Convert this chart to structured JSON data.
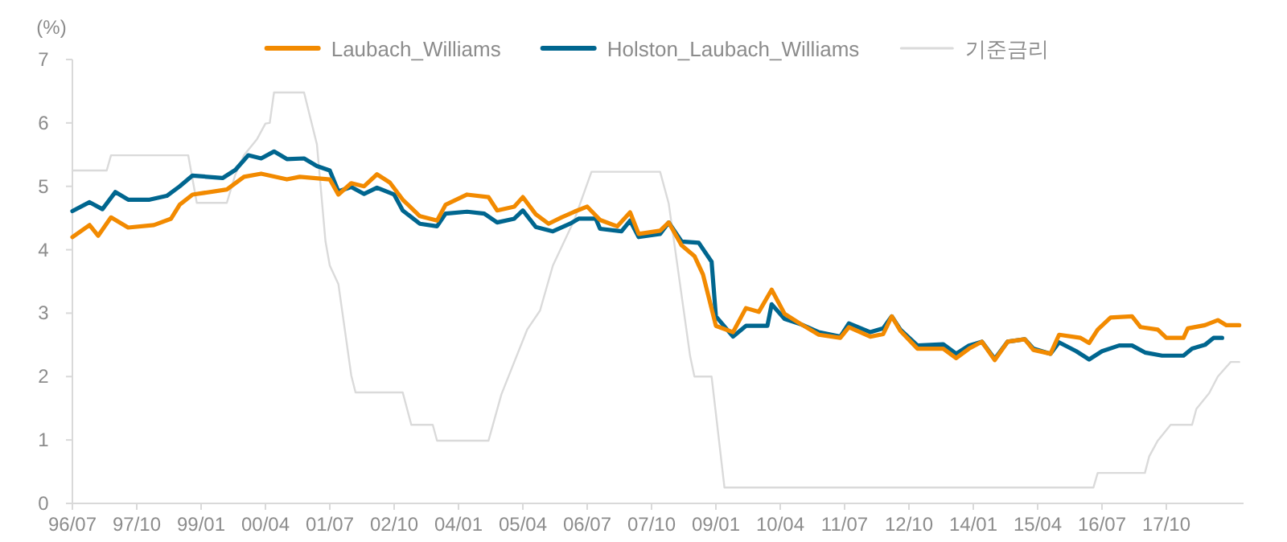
{
  "chart_data": {
    "type": "line",
    "ylabel": "(%)",
    "legend": "top",
    "grid": false,
    "xlim": [
      "1996-07",
      "2019-04"
    ],
    "ylim": [
      0,
      7
    ],
    "yticks": [
      0,
      1,
      2,
      3,
      4,
      5,
      6,
      7
    ],
    "xticks": [
      {
        "value": "1996-07",
        "label": "96/07"
      },
      {
        "value": "1997-10",
        "label": "97/10"
      },
      {
        "value": "1999-01",
        "label": "99/01"
      },
      {
        "value": "2000-04",
        "label": "00/04"
      },
      {
        "value": "2001-07",
        "label": "01/07"
      },
      {
        "value": "2002-10",
        "label": "02/10"
      },
      {
        "value": "2004-01",
        "label": "04/01"
      },
      {
        "value": "2005-04",
        "label": "05/04"
      },
      {
        "value": "2006-07",
        "label": "06/07"
      },
      {
        "value": "2007-10",
        "label": "07/10"
      },
      {
        "value": "2009-01",
        "label": "09/01"
      },
      {
        "value": "2010-04",
        "label": "10/04"
      },
      {
        "value": "2011-07",
        "label": "11/07"
      },
      {
        "value": "2012-10",
        "label": "12/10"
      },
      {
        "value": "2014-01",
        "label": "14/01"
      },
      {
        "value": "2015-04",
        "label": "15/04"
      },
      {
        "value": "2016-07",
        "label": "16/07"
      },
      {
        "value": "2017-10",
        "label": "17/10"
      }
    ],
    "series": [
      {
        "name": "Laubach_Williams",
        "color": "#f28a00",
        "x": [
          "1996-07",
          "1996-11",
          "1997-01",
          "1997-04",
          "1997-08",
          "1998-02",
          "1998-06",
          "1998-08",
          "1998-11",
          "1999-07",
          "1999-11",
          "2000-03",
          "2000-09",
          "2000-12",
          "2001-07",
          "2001-09",
          "2001-12",
          "2002-03",
          "2002-06",
          "2002-09",
          "2002-12",
          "2003-04",
          "2003-08",
          "2003-10",
          "2004-03",
          "2004-08",
          "2004-10",
          "2005-02",
          "2005-04",
          "2005-07",
          "2005-10",
          "2006-01",
          "2006-04",
          "2006-07",
          "2006-10",
          "2007-02",
          "2007-05",
          "2007-07",
          "2007-12",
          "2008-02",
          "2008-05",
          "2008-08",
          "2008-10",
          "2009-01",
          "2009-05",
          "2009-08",
          "2009-11",
          "2010-02",
          "2010-05",
          "2010-09",
          "2011-01",
          "2011-06",
          "2011-08",
          "2012-01",
          "2012-04",
          "2012-06",
          "2012-08",
          "2012-12",
          "2013-06",
          "2013-09",
          "2013-12",
          "2014-03",
          "2014-06",
          "2014-09",
          "2015-01",
          "2015-03",
          "2015-07",
          "2015-09",
          "2016-02",
          "2016-04",
          "2016-06",
          "2016-09",
          "2017-02",
          "2017-04",
          "2017-08",
          "2017-10",
          "2018-02",
          "2018-03",
          "2018-07",
          "2018-10",
          "2018-12",
          "2019-03"
        ],
        "values": [
          4.2,
          4.39,
          4.22,
          4.51,
          4.35,
          4.39,
          4.49,
          4.71,
          4.87,
          4.95,
          5.15,
          5.2,
          5.11,
          5.15,
          5.11,
          4.87,
          5.05,
          5.0,
          5.19,
          5.06,
          4.79,
          4.53,
          4.46,
          4.71,
          4.87,
          4.83,
          4.62,
          4.68,
          4.83,
          4.56,
          4.41,
          4.51,
          4.6,
          4.68,
          4.47,
          4.37,
          4.59,
          4.25,
          4.3,
          4.43,
          4.07,
          3.9,
          3.61,
          2.8,
          2.7,
          3.08,
          3.02,
          3.37,
          2.99,
          2.82,
          2.66,
          2.61,
          2.78,
          2.63,
          2.67,
          2.95,
          2.72,
          2.44,
          2.44,
          2.29,
          2.44,
          2.55,
          2.26,
          2.55,
          2.59,
          2.42,
          2.36,
          2.66,
          2.61,
          2.53,
          2.74,
          2.93,
          2.95,
          2.78,
          2.74,
          2.61,
          2.61,
          2.76,
          2.81,
          2.89,
          2.81,
          2.81
        ]
      },
      {
        "name": "Holston_Laubach_Williams",
        "color": "#00668f",
        "x": [
          "1996-07",
          "1996-11",
          "1997-02",
          "1997-05",
          "1997-08",
          "1998-01",
          "1998-05",
          "1998-08",
          "1998-11",
          "1999-06",
          "1999-09",
          "1999-12",
          "2000-03",
          "2000-06",
          "2000-09",
          "2001-01",
          "2001-04",
          "2001-07",
          "2001-09",
          "2001-12",
          "2002-03",
          "2002-06",
          "2002-10",
          "2002-12",
          "2003-04",
          "2003-08",
          "2003-10",
          "2004-03",
          "2004-07",
          "2004-10",
          "2005-02",
          "2005-04",
          "2005-07",
          "2005-11",
          "2006-03",
          "2006-05",
          "2006-09",
          "2006-10",
          "2007-03",
          "2007-05",
          "2007-07",
          "2007-12",
          "2008-02",
          "2008-05",
          "2008-09",
          "2008-12",
          "2009-01",
          "2009-05",
          "2009-08",
          "2010-01",
          "2010-02",
          "2010-05",
          "2010-09",
          "2011-01",
          "2011-06",
          "2011-08",
          "2012-01",
          "2012-04",
          "2012-06",
          "2012-08",
          "2012-12",
          "2013-06",
          "2013-09",
          "2013-12",
          "2014-03",
          "2014-06",
          "2014-09",
          "2015-01",
          "2015-03",
          "2015-07",
          "2015-09",
          "2016-01",
          "2016-04",
          "2016-07",
          "2016-11",
          "2017-02",
          "2017-05",
          "2017-09",
          "2018-02",
          "2018-04",
          "2018-07",
          "2018-09",
          "2018-11"
        ],
        "values": [
          4.61,
          4.75,
          4.64,
          4.91,
          4.79,
          4.79,
          4.85,
          5.0,
          5.17,
          5.13,
          5.26,
          5.49,
          5.44,
          5.55,
          5.43,
          5.44,
          5.32,
          5.25,
          4.92,
          4.99,
          4.88,
          4.98,
          4.87,
          4.62,
          4.41,
          4.37,
          4.57,
          4.6,
          4.57,
          4.43,
          4.49,
          4.62,
          4.36,
          4.29,
          4.41,
          4.49,
          4.49,
          4.33,
          4.29,
          4.46,
          4.2,
          4.25,
          4.43,
          4.13,
          4.11,
          3.81,
          2.95,
          2.63,
          2.8,
          2.8,
          3.14,
          2.91,
          2.82,
          2.7,
          2.63,
          2.84,
          2.7,
          2.76,
          2.95,
          2.74,
          2.49,
          2.51,
          2.36,
          2.49,
          2.55,
          2.28,
          2.55,
          2.59,
          2.44,
          2.36,
          2.54,
          2.4,
          2.27,
          2.4,
          2.49,
          2.49,
          2.38,
          2.33,
          2.33,
          2.44,
          2.5,
          2.61,
          2.61
        ]
      },
      {
        "name": "기준금리",
        "color": "#dadada",
        "x": [
          "1996-07",
          "1997-03",
          "1997-04",
          "1998-10",
          "1998-12",
          "1999-07",
          "1999-09",
          "1999-11",
          "2000-02",
          "2000-04",
          "2000-05",
          "2000-06",
          "2001-01",
          "2001-04",
          "2001-06",
          "2001-07",
          "2001-09",
          "2001-12",
          "2002-01",
          "2002-12",
          "2003-02",
          "2003-07",
          "2003-08",
          "2004-08",
          "2004-11",
          "2005-02",
          "2005-05",
          "2005-08",
          "2005-11",
          "2006-04",
          "2006-08",
          "2007-12",
          "2008-02",
          "2008-07",
          "2008-08",
          "2008-12",
          "2009-03",
          "2016-05",
          "2016-06",
          "2017-05",
          "2017-06",
          "2017-08",
          "2017-11",
          "2018-04",
          "2018-05",
          "2018-08",
          "2018-10",
          "2019-01",
          "2019-03"
        ],
        "values": [
          5.25,
          5.25,
          5.49,
          5.49,
          4.74,
          4.74,
          5.19,
          5.49,
          5.74,
          5.99,
          6.0,
          6.48,
          6.48,
          5.66,
          4.13,
          3.75,
          3.46,
          2.02,
          1.75,
          1.75,
          1.24,
          1.24,
          0.99,
          0.99,
          1.72,
          2.23,
          2.74,
          3.04,
          3.75,
          4.47,
          5.23,
          5.23,
          4.73,
          2.32,
          2.0,
          2.0,
          0.25,
          0.25,
          0.48,
          0.48,
          0.74,
          0.99,
          1.24,
          1.24,
          1.49,
          1.74,
          2.0,
          2.23,
          2.23
        ]
      }
    ]
  }
}
